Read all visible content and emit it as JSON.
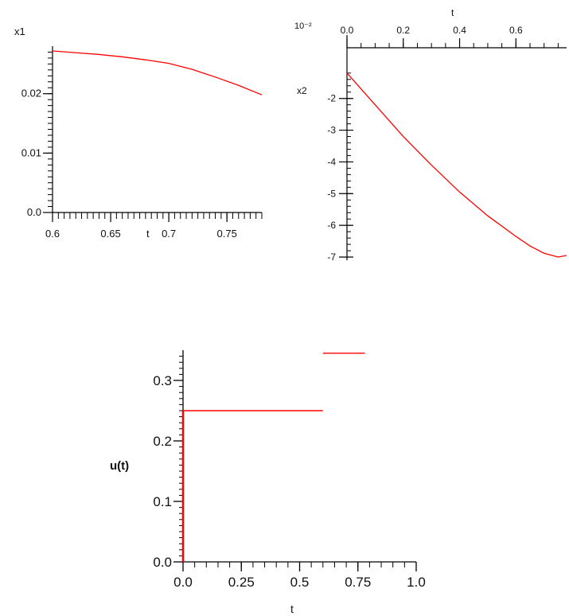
{
  "chart_data": [
    {
      "type": "line",
      "xlabel": "t",
      "ylabel": "x1",
      "xlim": [
        0.6,
        0.78
      ],
      "ylim": [
        0.0,
        0.028
      ],
      "x_ticks": [
        "0.6",
        "0.65",
        "0.7",
        "0.75"
      ],
      "y_ticks": [
        "0.0",
        "0.01",
        "0.02"
      ],
      "series": [
        {
          "color": "#ff0000",
          "x": [
            0.6,
            0.62,
            0.64,
            0.66,
            0.68,
            0.7,
            0.72,
            0.74,
            0.76,
            0.78
          ],
          "y": [
            0.0272,
            0.0269,
            0.0266,
            0.0262,
            0.0257,
            0.0251,
            0.0241,
            0.0228,
            0.0214,
            0.0198
          ]
        }
      ]
    },
    {
      "type": "line",
      "xlabel": "t",
      "ylabel": "x2",
      "scale_note": "10⁻²",
      "xlim": [
        0.0,
        0.78
      ],
      "ylim": [
        -7.0,
        0.0
      ],
      "x_ticks": [
        "0.0",
        "0.2",
        "0.4",
        "0.6"
      ],
      "y_ticks": [
        "-2",
        "-3",
        "-4",
        "-5",
        "-6",
        "-7"
      ],
      "series": [
        {
          "color": "#ff0000",
          "x": [
            0.0,
            0.1,
            0.2,
            0.3,
            0.4,
            0.5,
            0.6,
            0.65,
            0.7,
            0.75,
            0.78
          ],
          "y": [
            -1.2,
            -2.2,
            -3.2,
            -4.1,
            -4.95,
            -5.7,
            -6.35,
            -6.65,
            -6.88,
            -7.0,
            -6.95
          ]
        }
      ]
    },
    {
      "type": "line",
      "xlabel": "t",
      "ylabel": "u(t)",
      "xlim": [
        0.0,
        1.0
      ],
      "ylim": [
        0.0,
        0.35
      ],
      "x_ticks": [
        "0.0",
        "0.25",
        "0.5",
        "0.75",
        "1.0"
      ],
      "y_ticks": [
        "0.0",
        "0.1",
        "0.2",
        "0.3"
      ],
      "series": [
        {
          "color": "#ff0000",
          "segments": [
            {
              "x": [
                0.0,
                0.0
              ],
              "y": [
                0.0,
                0.25
              ]
            },
            {
              "x": [
                0.0,
                0.6
              ],
              "y": [
                0.25,
                0.25
              ]
            },
            {
              "x": [
                0.6,
                0.78
              ],
              "y": [
                0.345,
                0.345
              ]
            }
          ]
        }
      ]
    }
  ]
}
